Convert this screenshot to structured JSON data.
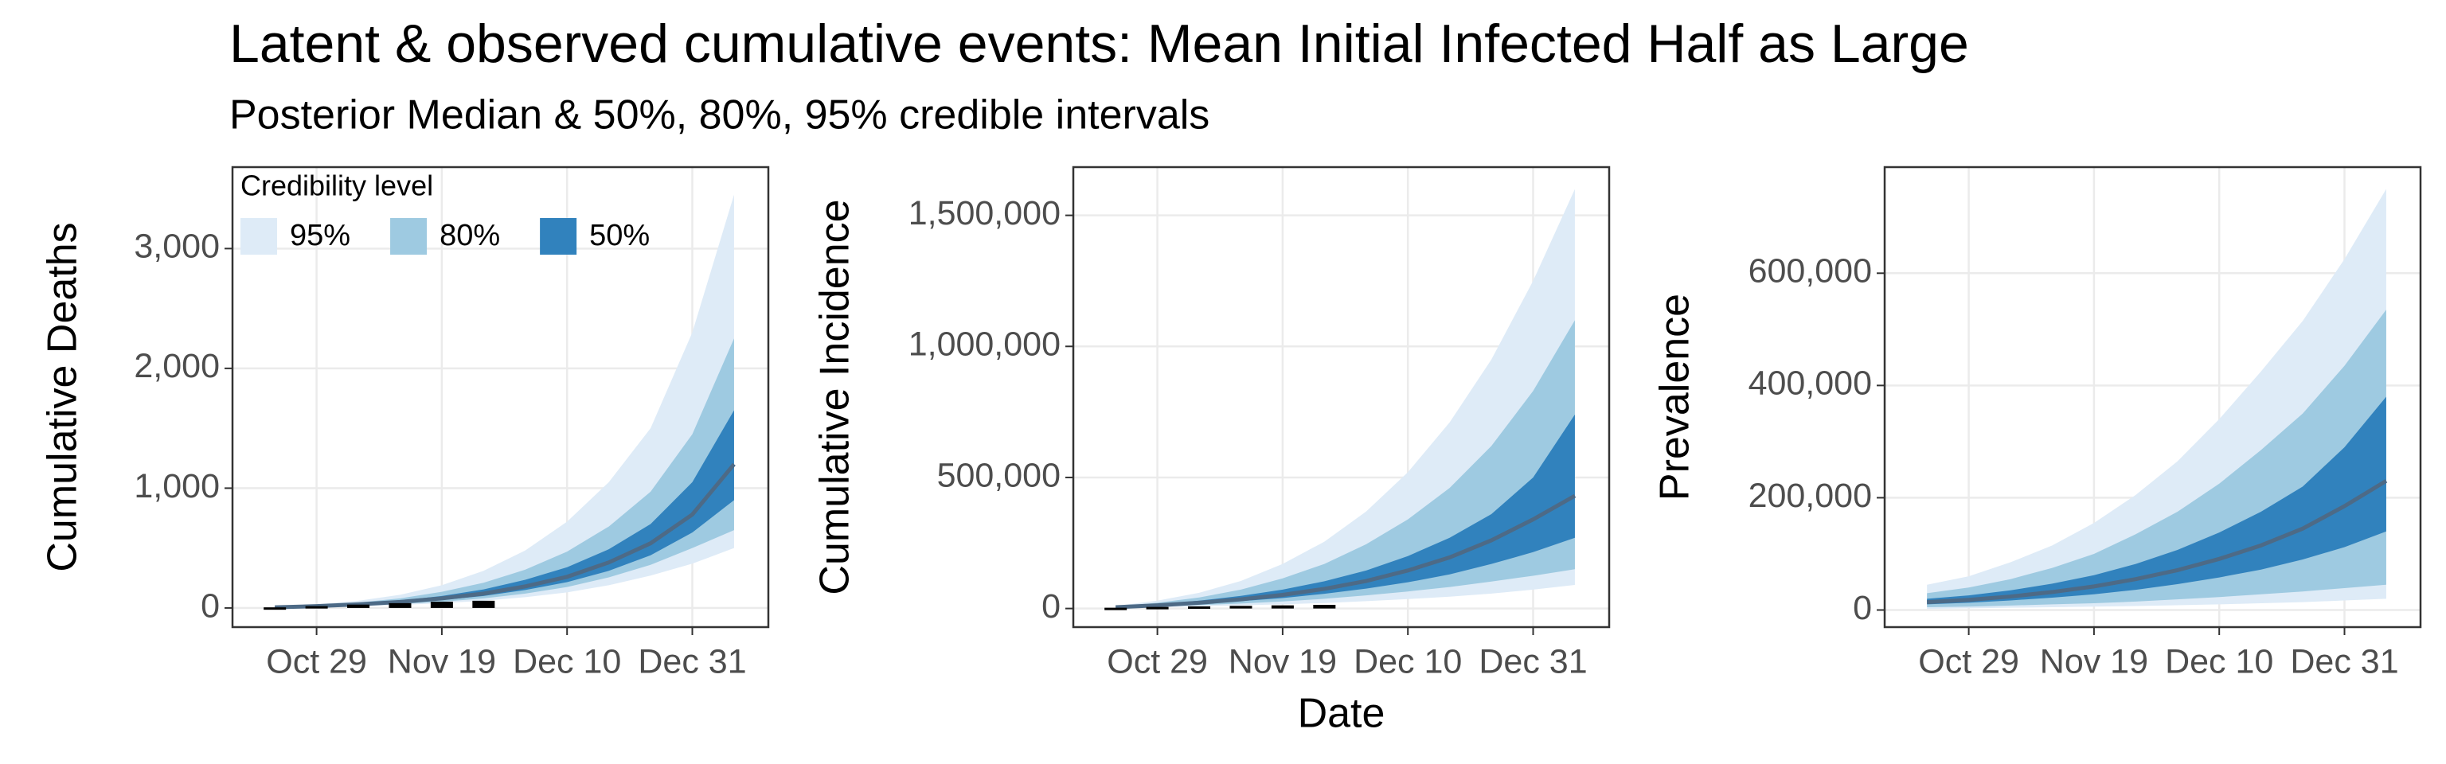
{
  "title": "Latent & observed cumulative events: Mean Initial Infected Half as Large",
  "subtitle": "Posterior Median & 50%, 80%, 95% credible intervals",
  "chart_data": [
    {
      "type": "area",
      "y_label": "Cumulative Deaths",
      "x": [
        "Oct 22",
        "Oct 29",
        "Nov 5",
        "Nov 12",
        "Nov 19",
        "Nov 26",
        "Dec 3",
        "Dec 10",
        "Dec 17",
        "Dec 24",
        "Dec 31",
        "Jan 7"
      ],
      "xticks": [
        "Oct 29",
        "Nov 19",
        "Dec 10",
        "Dec 31"
      ],
      "ylim": [
        -160,
        3680
      ],
      "yticks": [
        0,
        {
          "value": 1000,
          "label": "1,000"
        },
        {
          "value": 2000,
          "label": "2,000"
        },
        {
          "value": 3000,
          "label": "3,000"
        }
      ],
      "grid": true,
      "legend": "top-left",
      "legend_title": "Credibility level",
      "bands": [
        {
          "name": "95%",
          "color": "#deebf7",
          "low": [
            3,
            8,
            15,
            25,
            40,
            60,
            90,
            130,
            190,
            270,
            370,
            500
          ],
          "high": [
            10,
            30,
            60,
            110,
            190,
            310,
            480,
            720,
            1050,
            1500,
            2300,
            3450
          ]
        },
        {
          "name": "80%",
          "color": "#9ecae1",
          "low": [
            4,
            10,
            20,
            33,
            52,
            80,
            120,
            175,
            255,
            360,
            500,
            650
          ],
          "high": [
            8,
            22,
            45,
            80,
            135,
            210,
            320,
            470,
            680,
            970,
            1450,
            2250
          ]
        },
        {
          "name": "50%",
          "color": "#3182bd",
          "low": [
            5,
            13,
            25,
            42,
            66,
            100,
            150,
            215,
            310,
            440,
            630,
            900
          ],
          "high": [
            6,
            18,
            36,
            62,
            100,
            155,
            235,
            340,
            490,
            700,
            1050,
            1650
          ]
        }
      ],
      "median": {
        "color": "#4d6a86",
        "values": [
          5,
          15,
          30,
          50,
          80,
          120,
          180,
          260,
          380,
          540,
          780,
          1200
        ]
      },
      "observed": {
        "color": "#000000",
        "values": [
          5,
          15,
          28,
          40,
          52,
          60,
          null,
          null,
          null,
          null,
          null,
          null
        ]
      }
    },
    {
      "type": "area",
      "y_label": "Cumulative Incidence",
      "x_label": "Date",
      "x": [
        "Oct 22",
        "Oct 29",
        "Nov 5",
        "Nov 12",
        "Nov 19",
        "Nov 26",
        "Dec 3",
        "Dec 10",
        "Dec 17",
        "Dec 24",
        "Dec 31",
        "Jan 7"
      ],
      "xticks": [
        "Oct 29",
        "Nov 19",
        "Dec 10",
        "Dec 31"
      ],
      "ylim": [
        -71000,
        1684000
      ],
      "yticks": [
        0,
        {
          "value": 500000,
          "label": "500,000"
        },
        {
          "value": 1000000,
          "label": "1,000,000"
        },
        {
          "value": 1500000,
          "label": "1,500,000"
        }
      ],
      "grid": true,
      "bands": [
        {
          "name": "95%",
          "color": "#deebf7",
          "low": [
            2500,
            5000,
            8500,
            12000,
            16000,
            21000,
            28000,
            36000,
            45000,
            57000,
            72000,
            90000
          ],
          "high": [
            10000,
            30000,
            60000,
            105000,
            170000,
            255000,
            370000,
            520000,
            710000,
            950000,
            1250000,
            1600000
          ]
        },
        {
          "name": "80%",
          "color": "#9ecae1",
          "low": [
            3500,
            7500,
            13000,
            19000,
            27000,
            37000,
            50000,
            65000,
            82000,
            103000,
            125000,
            150000
          ],
          "high": [
            8000,
            22000,
            42000,
            72000,
            115000,
            170000,
            245000,
            340000,
            460000,
            620000,
            830000,
            1100000
          ]
        },
        {
          "name": "50%",
          "color": "#3182bd",
          "low": [
            4500,
            10000,
            18000,
            28000,
            40000,
            56000,
            76000,
            100000,
            130000,
            170000,
            215000,
            270000
          ],
          "high": [
            6000,
            16000,
            30000,
            48000,
            72000,
            104000,
            145000,
            200000,
            270000,
            360000,
            500000,
            740000
          ]
        }
      ],
      "median": {
        "color": "#4d6a86",
        "values": [
          5000,
          12000,
          22000,
          35000,
          52000,
          75000,
          105000,
          145000,
          195000,
          260000,
          340000,
          430000
        ]
      },
      "observed": {
        "color": "#000000",
        "values": [
          3000,
          6000,
          8000,
          10000,
          12000,
          14000,
          null,
          null,
          null,
          null,
          null,
          null
        ]
      }
    },
    {
      "type": "area",
      "y_label": "Prevalence",
      "x": [
        "Oct 22",
        "Oct 29",
        "Nov 5",
        "Nov 12",
        "Nov 19",
        "Nov 26",
        "Dec 3",
        "Dec 10",
        "Dec 17",
        "Dec 24",
        "Dec 31",
        "Jan 7"
      ],
      "xticks": [
        "Oct 29",
        "Nov 19",
        "Dec 10",
        "Dec 31"
      ],
      "ylim": [
        -30500,
        789000
      ],
      "yticks": [
        0,
        {
          "value": 200000,
          "label": "200,000"
        },
        {
          "value": 400000,
          "label": "400,000"
        },
        {
          "value": 600000,
          "label": "600,000"
        }
      ],
      "grid": true,
      "bands": [
        {
          "name": "95%",
          "color": "#deebf7",
          "low": [
            2000,
            3000,
            4000,
            5000,
            6000,
            7000,
            8500,
            10000,
            12000,
            14000,
            17000,
            20000
          ],
          "high": [
            45000,
            60000,
            85000,
            115000,
            155000,
            205000,
            265000,
            340000,
            425000,
            515000,
            625000,
            750000
          ]
        },
        {
          "name": "80%",
          "color": "#9ecae1",
          "low": [
            5000,
            6000,
            8000,
            10000,
            12000,
            15000,
            19000,
            23000,
            28000,
            33000,
            39000,
            45000
          ],
          "high": [
            30000,
            40000,
            55000,
            75000,
            100000,
            135000,
            175000,
            225000,
            285000,
            350000,
            435000,
            535000
          ]
        },
        {
          "name": "50%",
          "color": "#3182bd",
          "low": [
            10000,
            13000,
            17000,
            22000,
            28000,
            36000,
            46000,
            58000,
            72000,
            90000,
            112000,
            140000
          ],
          "high": [
            20000,
            26000,
            35000,
            47000,
            62000,
            82000,
            107000,
            138000,
            175000,
            220000,
            290000,
            380000
          ]
        }
      ],
      "median": {
        "color": "#4d6a86",
        "values": [
          14000,
          18000,
          24000,
          32000,
          42000,
          55000,
          71000,
          91000,
          115000,
          145000,
          185000,
          230000
        ]
      }
    }
  ]
}
